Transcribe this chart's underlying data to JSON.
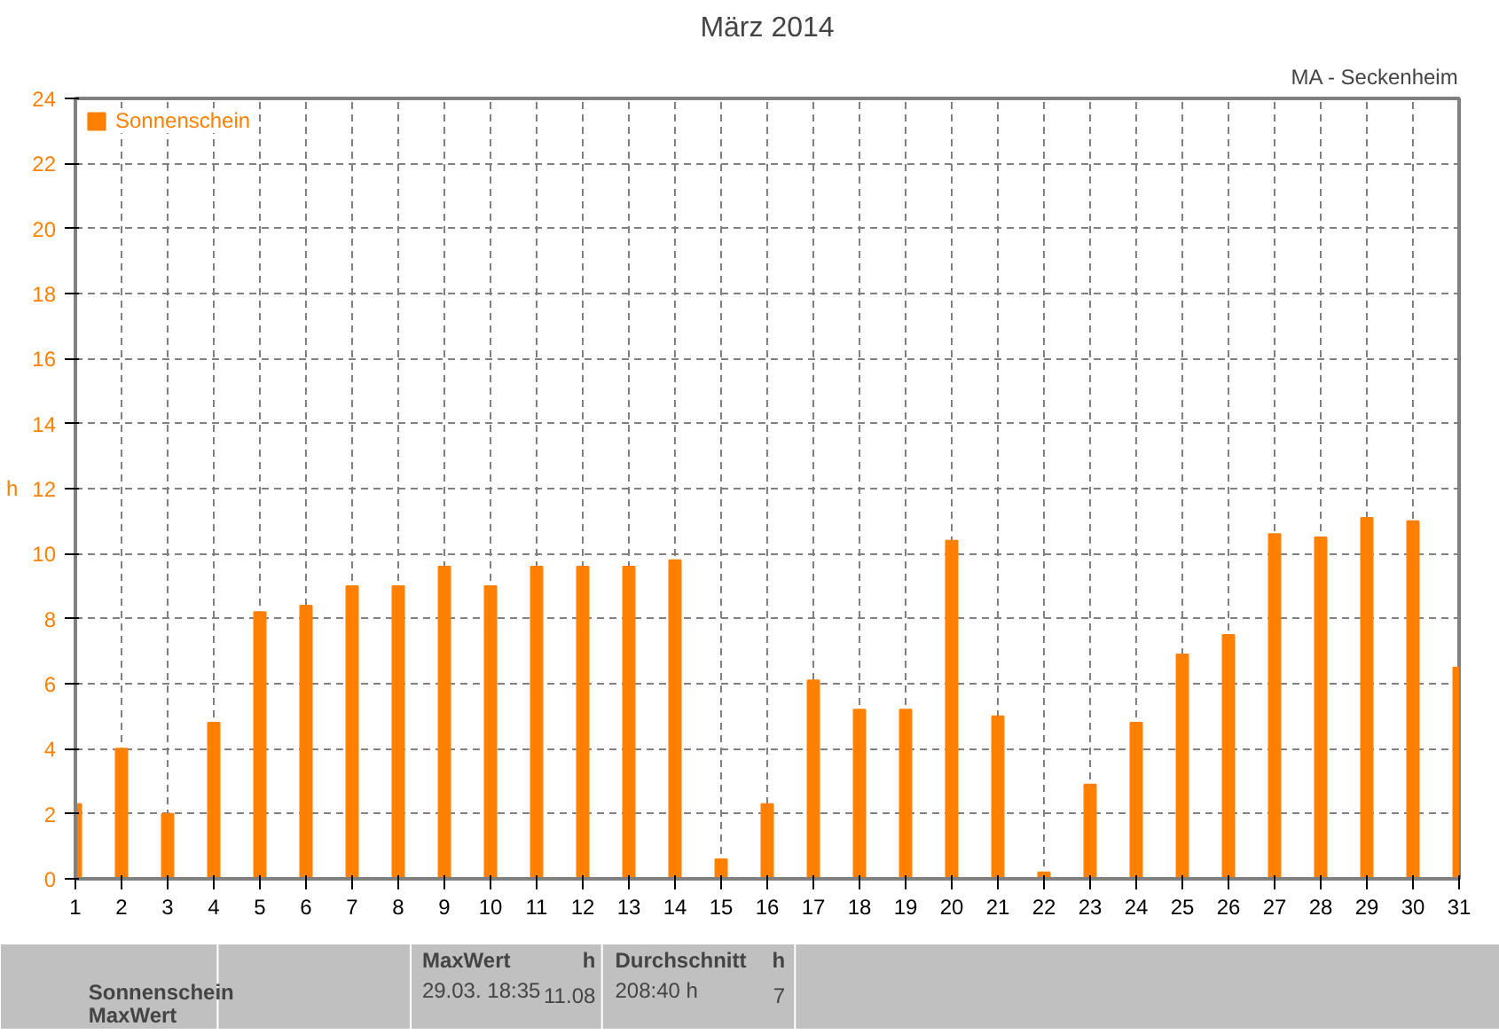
{
  "chart_data": {
    "type": "bar",
    "title": "März 2014",
    "subtitle": "MA - Seckenheim",
    "ylabel": "h",
    "x": [
      1,
      2,
      3,
      4,
      5,
      6,
      7,
      8,
      9,
      10,
      11,
      12,
      13,
      14,
      15,
      16,
      17,
      18,
      19,
      20,
      21,
      22,
      23,
      24,
      25,
      26,
      27,
      28,
      29,
      30,
      31
    ],
    "series": [
      {
        "name": "Sonnenschein",
        "color": "#ff8000",
        "values": [
          2.3,
          4.0,
          2.0,
          4.8,
          8.2,
          8.4,
          9.0,
          9.0,
          9.6,
          9.0,
          9.6,
          9.6,
          9.6,
          9.8,
          0.6,
          2.3,
          6.1,
          5.2,
          5.2,
          10.4,
          5.0,
          0.2,
          2.9,
          4.8,
          6.9,
          7.5,
          10.6,
          10.5,
          11.1,
          11.0,
          6.5
        ]
      }
    ],
    "xlim": [
      1,
      31
    ],
    "xticks": [
      1,
      2,
      3,
      4,
      5,
      6,
      7,
      8,
      9,
      10,
      11,
      12,
      13,
      14,
      15,
      16,
      17,
      18,
      19,
      20,
      21,
      22,
      23,
      24,
      25,
      26,
      27,
      28,
      29,
      30,
      31
    ],
    "ylim": [
      0,
      24
    ],
    "yticks": [
      0,
      2,
      4,
      6,
      8,
      10,
      12,
      14,
      16,
      18,
      20,
      22,
      24
    ],
    "grid": true,
    "legend": "top left",
    "annotations": [
      "Sonnenschein",
      "MaxWert",
      "MaxWert",
      "h",
      "29.03.  18:35",
      "11.08",
      "Durchschnitt",
      "h",
      "208:40 h",
      "7"
    ]
  }
}
